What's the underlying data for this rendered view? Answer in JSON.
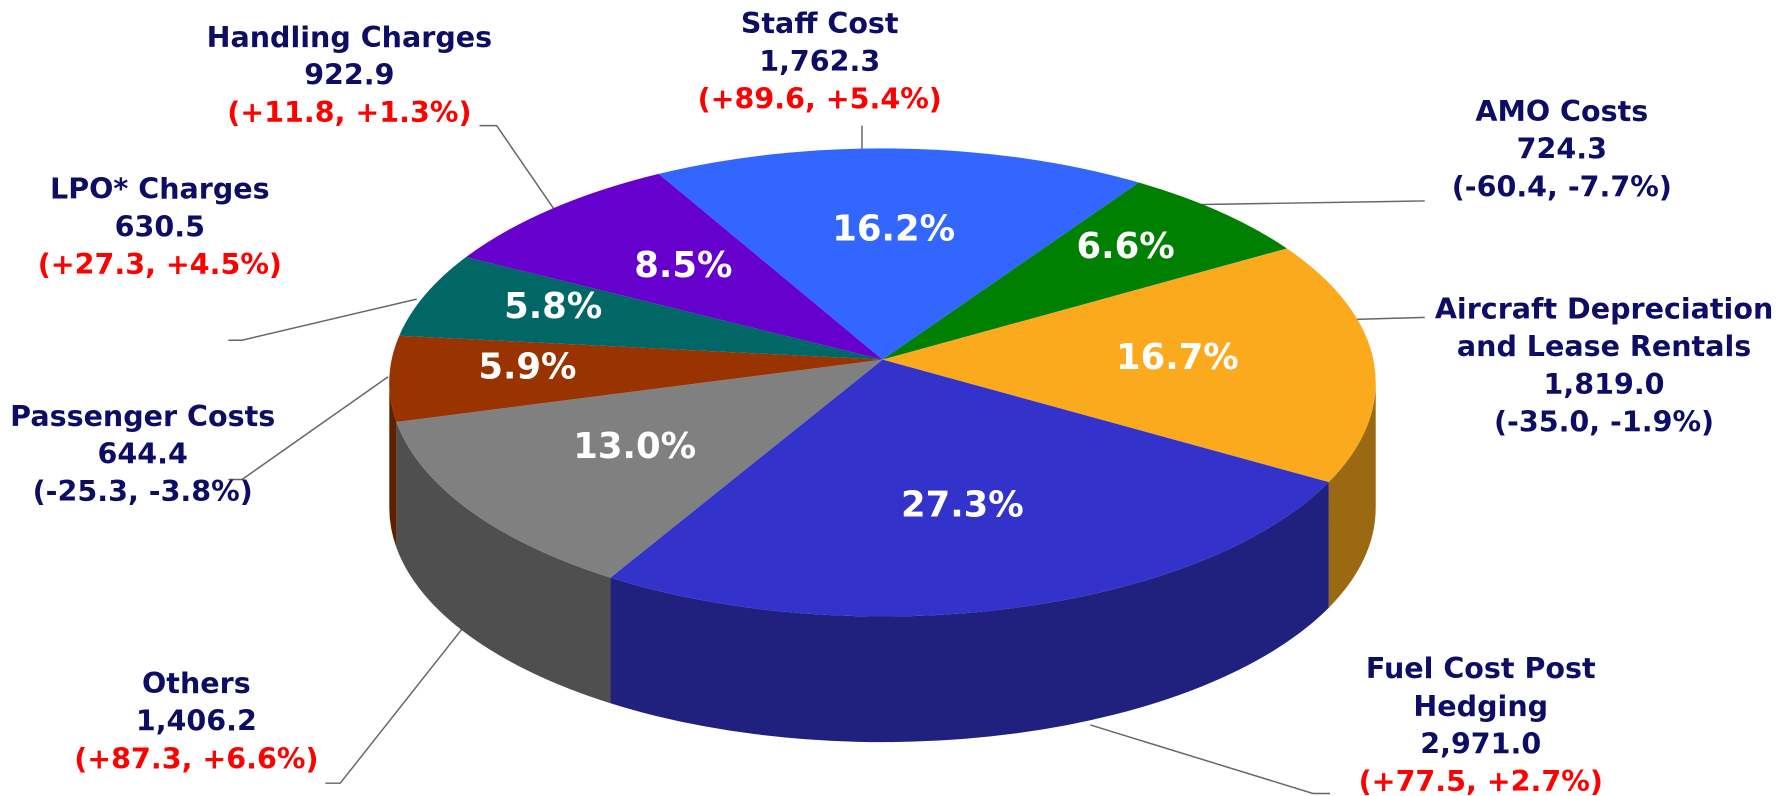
{
  "chart_data": {
    "type": "pie",
    "three_d": true,
    "categories": [
      "Staff Cost",
      "AMO Costs",
      "Aircraft Depreciation and Lease Rentals",
      "Fuel Cost Post Hedging",
      "Others",
      "Passenger Costs",
      "LPO* Charges",
      "Handling Charges"
    ],
    "values": [
      16.2,
      6.6,
      16.7,
      27.3,
      13.0,
      5.9,
      5.8,
      8.5
    ],
    "value_labels": [
      "16.2%",
      "6.6%",
      "16.7%",
      "27.3%",
      "13.0%",
      "5.9%",
      "5.8%",
      "8.5%"
    ],
    "amounts": [
      "1,762.3",
      "724.3",
      "1,819.0",
      "2,971.0",
      "1,406.2",
      "644.4",
      "630.5",
      "922.9"
    ],
    "changes": [
      "(+89.6, +5.4%)",
      "(-60.4, -7.7%)",
      "(-35.0, -1.9%)",
      "(+77.5, +2.7%)",
      "(+87.3, +6.6%)",
      "(-25.3, -3.8%)",
      "(+27.3, +4.5%)",
      "(+11.8, +1.3%)"
    ],
    "change_colors": [
      "#ff0000",
      "#0d0d66",
      "#0d0d66",
      "#ff0000",
      "#ff0000",
      "#0d0d66",
      "#ff0000",
      "#ff0000"
    ],
    "colors": [
      "#3366ff",
      "#008000",
      "#fbaa1e",
      "#3333cc",
      "#808080",
      "#993300",
      "#006666",
      "#6600cc"
    ]
  }
}
